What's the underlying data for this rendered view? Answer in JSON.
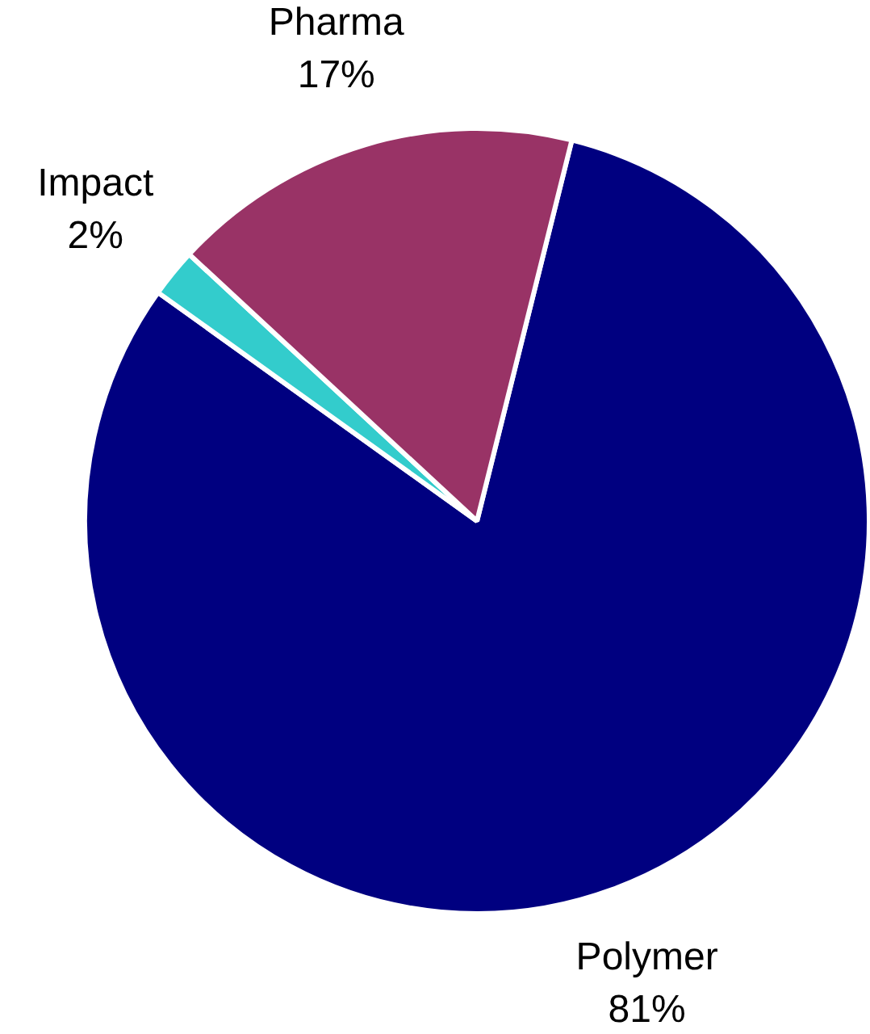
{
  "chart_data": {
    "type": "pie",
    "categories": [
      "Polymer",
      "Impact",
      "Pharma"
    ],
    "values": [
      81,
      2,
      17
    ],
    "value_labels": [
      "81%",
      "2%",
      "17%"
    ],
    "colors": [
      "#000080",
      "#33cccc",
      "#993366"
    ]
  }
}
